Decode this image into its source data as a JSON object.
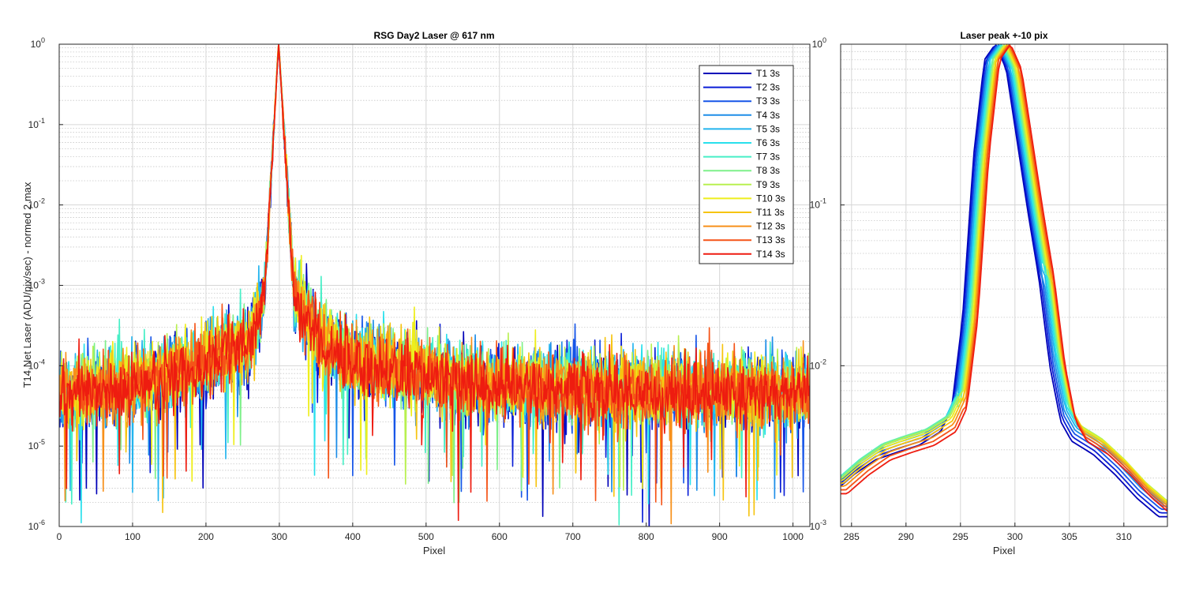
{
  "chart_data": [
    {
      "type": "line",
      "title": "RSG  Day2 Laser @ 617 nm",
      "xlabel": "Pixel",
      "ylabel": "T14 Net Laser (ADU/pix/sec) - normed 2 max",
      "xlim": [
        0,
        1023
      ],
      "ylim": [
        1e-06,
        1
      ],
      "yscale": "log",
      "grid": true,
      "legend_loc": "top-right",
      "x_ticks": [
        0,
        100,
        200,
        300,
        400,
        500,
        600,
        700,
        800,
        900,
        1000
      ],
      "y_ticks": [
        {
          "base": "10",
          "exp": "-6"
        },
        {
          "base": "10",
          "exp": "-5"
        },
        {
          "base": "10",
          "exp": "-4"
        },
        {
          "base": "10",
          "exp": "-3"
        },
        {
          "base": "10",
          "exp": "-2"
        },
        {
          "base": "10",
          "exp": "-1"
        },
        {
          "base": "10",
          "exp": "0"
        }
      ],
      "peak_pixel": 299,
      "profile_points": [
        {
          "x": 0,
          "y": 4e-05
        },
        {
          "x": 100,
          "y": 5.5e-05
        },
        {
          "x": 200,
          "y": 0.0001
        },
        {
          "x": 260,
          "y": 0.00018
        },
        {
          "x": 280,
          "y": 0.0007
        },
        {
          "x": 299,
          "y": 1.0
        },
        {
          "x": 320,
          "y": 0.0007
        },
        {
          "x": 360,
          "y": 0.00018
        },
        {
          "x": 400,
          "y": 0.00011
        },
        {
          "x": 500,
          "y": 7e-05
        },
        {
          "x": 600,
          "y": 5.2e-05
        },
        {
          "x": 800,
          "y": 4.6e-05
        },
        {
          "x": 1023,
          "y": 4.4e-05
        }
      ],
      "noise_spread": 0.3,
      "series": [
        {
          "name": "T1 3s",
          "color": "#0000b8"
        },
        {
          "name": "T2 3s",
          "color": "#0a1ed6"
        },
        {
          "name": "T3 3s",
          "color": "#1655e8"
        },
        {
          "name": "T4 3s",
          "color": "#1e8ee8"
        },
        {
          "name": "T5 3s",
          "color": "#22b4ee"
        },
        {
          "name": "T6 3s",
          "color": "#29e0ec"
        },
        {
          "name": "T7 3s",
          "color": "#47efc6"
        },
        {
          "name": "T8 3s",
          "color": "#7ef08a"
        },
        {
          "name": "T9 3s",
          "color": "#b8f050"
        },
        {
          "name": "T10 3s",
          "color": "#eeee1c"
        },
        {
          "name": "T11 3s",
          "color": "#f6c410"
        },
        {
          "name": "T12 3s",
          "color": "#f7901a"
        },
        {
          "name": "T13 3s",
          "color": "#f55418"
        },
        {
          "name": "T14 3s",
          "color": "#ee1c10"
        }
      ]
    },
    {
      "type": "line",
      "title": "Laser peak +-10 pix",
      "xlabel": "Pixel",
      "ylabel": "",
      "xlim": [
        284,
        314
      ],
      "ylim": [
        0.001,
        1
      ],
      "yscale": "log",
      "grid": true,
      "x_ticks": [
        285,
        290,
        295,
        300,
        305,
        310
      ],
      "y_ticks": [
        {
          "base": "10",
          "exp": "-3"
        },
        {
          "base": "10",
          "exp": "-2"
        },
        {
          "base": "10",
          "exp": "-1"
        },
        {
          "base": "10",
          "exp": "0"
        }
      ],
      "profile_points": [
        {
          "x": 284,
          "y": 0.0016
        },
        {
          "x": 286,
          "y": 0.0021
        },
        {
          "x": 288,
          "y": 0.0026
        },
        {
          "x": 290,
          "y": 0.0029
        },
        {
          "x": 292,
          "y": 0.0032
        },
        {
          "x": 294,
          "y": 0.0039
        },
        {
          "x": 295,
          "y": 0.0055
        },
        {
          "x": 296,
          "y": 0.02
        },
        {
          "x": 297,
          "y": 0.2
        },
        {
          "x": 298,
          "y": 0.8
        },
        {
          "x": 299,
          "y": 1.0
        },
        {
          "x": 300,
          "y": 0.7
        },
        {
          "x": 301,
          "y": 0.25
        },
        {
          "x": 302,
          "y": 0.09
        },
        {
          "x": 303,
          "y": 0.035
        },
        {
          "x": 304,
          "y": 0.01
        },
        {
          "x": 305,
          "y": 0.0045
        },
        {
          "x": 306,
          "y": 0.0034
        },
        {
          "x": 308,
          "y": 0.0028
        },
        {
          "x": 310,
          "y": 0.0021
        },
        {
          "x": 312,
          "y": 0.0015
        },
        {
          "x": 314,
          "y": 0.00115
        }
      ],
      "peak_shift_range": [
        -0.8,
        0.6
      ]
    }
  ]
}
